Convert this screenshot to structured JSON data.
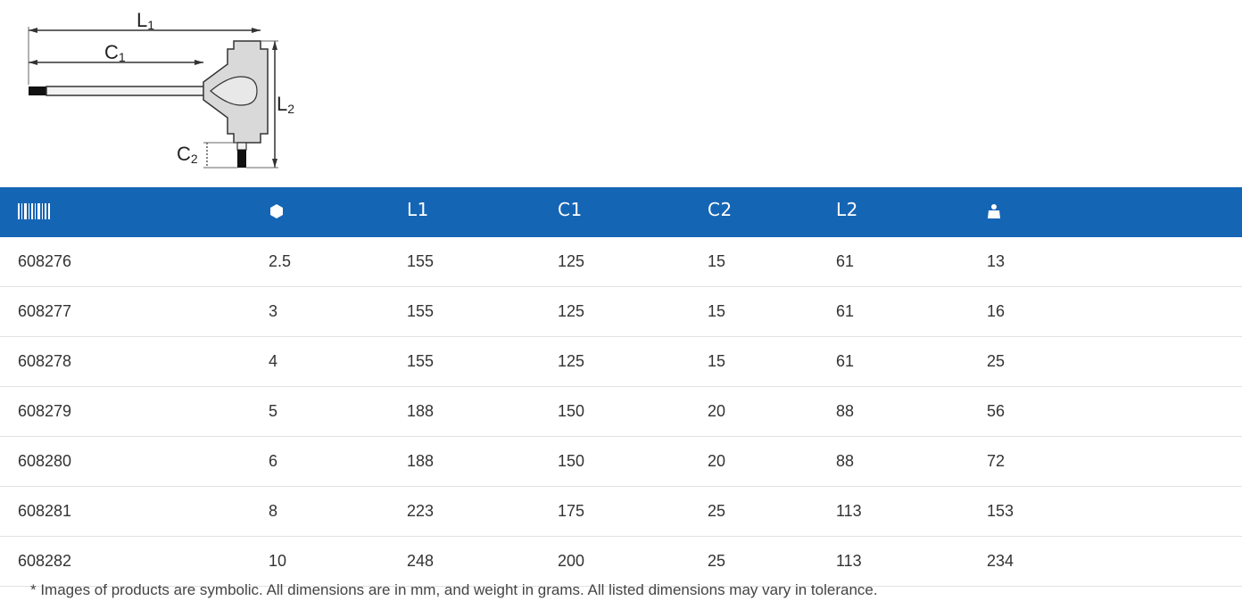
{
  "diagram": {
    "labels": {
      "l1": "L",
      "l1_sub": "1",
      "c1": "C",
      "c1_sub": "1",
      "l2": "L",
      "l2_sub": "2",
      "c2": "C",
      "c2_sub": "2"
    }
  },
  "table": {
    "headers": [
      {
        "icon": "barcode-icon",
        "label": ""
      },
      {
        "icon": "hexagon-icon",
        "label": ""
      },
      {
        "icon": "",
        "label": "L1"
      },
      {
        "icon": "",
        "label": "C1"
      },
      {
        "icon": "",
        "label": "C2"
      },
      {
        "icon": "",
        "label": "L2"
      },
      {
        "icon": "weight-icon",
        "label": ""
      }
    ],
    "rows": [
      [
        "608276",
        "2.5",
        "155",
        "125",
        "15",
        "61",
        "13"
      ],
      [
        "608277",
        "3",
        "155",
        "125",
        "15",
        "61",
        "16"
      ],
      [
        "608278",
        "4",
        "155",
        "125",
        "15",
        "61",
        "25"
      ],
      [
        "608279",
        "5",
        "188",
        "150",
        "20",
        "88",
        "56"
      ],
      [
        "608280",
        "6",
        "188",
        "150",
        "20",
        "88",
        "72"
      ],
      [
        "608281",
        "8",
        "223",
        "175",
        "25",
        "113",
        "153"
      ],
      [
        "608282",
        "10",
        "248",
        "200",
        "25",
        "113",
        "234"
      ]
    ],
    "header_color": "#1565b5"
  },
  "footnote": "* Images of products are symbolic. All dimensions are in mm, and weight in grams. All listed dimensions may vary in tolerance."
}
